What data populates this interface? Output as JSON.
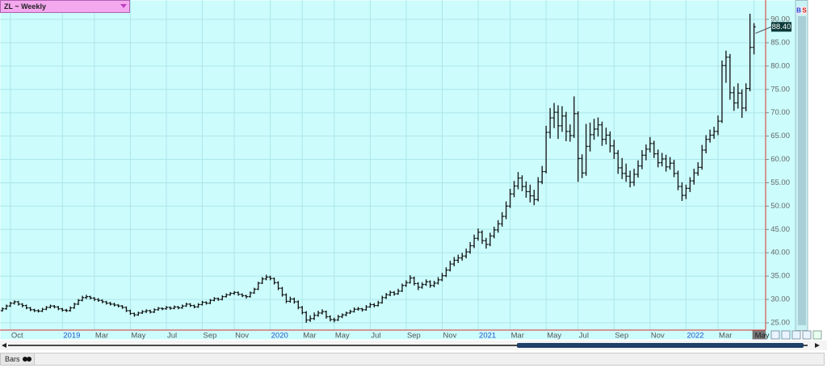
{
  "chart_data": {
    "type": "ohlc",
    "title": "ZL ~ Weekly",
    "title_color": "#f4a8ee",
    "background": "#ccfcfc",
    "grid_color": "#aee6ea",
    "bar_color": "#111111",
    "year_label_color": "#2255cc",
    "ylim": [
      25,
      90
    ],
    "yticks": [
      {
        "value": 25,
        "label": "25.00"
      },
      {
        "value": 30,
        "label": "30.00"
      },
      {
        "value": 35,
        "label": "35.00"
      },
      {
        "value": 40,
        "label": "40.00"
      },
      {
        "value": 45,
        "label": "45.00"
      },
      {
        "value": 50,
        "label": "50.00"
      },
      {
        "value": 55,
        "label": "55.00"
      },
      {
        "value": 60,
        "label": "60.00"
      },
      {
        "value": 65,
        "label": "65.00"
      },
      {
        "value": 70,
        "label": "70.00"
      },
      {
        "value": 75,
        "label": "75.00"
      },
      {
        "value": 80,
        "label": "80.00"
      },
      {
        "value": 85,
        "label": "85.00"
      },
      {
        "value": 90,
        "label": "90.00"
      }
    ],
    "grid": true,
    "last_price": {
      "value": 88.4,
      "label": "88.40"
    },
    "categories": [
      null,
      null,
      "Oct",
      null,
      null,
      null,
      null,
      null,
      null,
      null,
      null,
      null,
      null,
      null,
      null,
      "2019",
      null,
      null,
      null,
      null,
      null,
      null,
      null,
      "Mar",
      null,
      null,
      null,
      null,
      null,
      null,
      null,
      null,
      "May",
      null,
      null,
      null,
      null,
      null,
      null,
      null,
      null,
      "Jul",
      null,
      null,
      null,
      null,
      null,
      null,
      null,
      null,
      "Sep",
      null,
      null,
      null,
      null,
      null,
      null,
      null,
      "Nov",
      null,
      null,
      null,
      null,
      null,
      null,
      null,
      null,
      "2020",
      null,
      null,
      null,
      null,
      null,
      null,
      null,
      "Mar",
      null,
      null,
      null,
      null,
      null,
      null,
      null,
      "May",
      null,
      null,
      null,
      null,
      null,
      null,
      null,
      null,
      "Jul",
      null,
      null,
      null,
      null,
      null,
      null,
      null,
      null,
      "Sep",
      null,
      null,
      null,
      null,
      null,
      null,
      null,
      null,
      "Nov",
      null,
      null,
      null,
      null,
      null,
      null,
      null,
      null,
      "2021",
      null,
      null,
      null,
      null,
      null,
      null,
      null,
      "Mar",
      null,
      null,
      null,
      null,
      null,
      null,
      null,
      null,
      "May",
      null,
      null,
      null,
      null,
      null,
      null,
      null,
      "Jul",
      null,
      null,
      null,
      null,
      null,
      null,
      null,
      null,
      "Sep",
      null,
      null,
      null,
      null,
      null,
      null,
      null,
      null,
      "Nov",
      null,
      null,
      null,
      null,
      null,
      null,
      null,
      null,
      "2022",
      null,
      null,
      null,
      null,
      null,
      null,
      null,
      "Mar",
      null,
      null,
      null,
      null,
      null,
      null,
      null,
      null,
      "May"
    ],
    "values": [
      [
        27.6,
        28.3,
        27.4,
        28.0
      ],
      [
        28.0,
        28.9,
        27.8,
        28.6
      ],
      [
        28.6,
        29.5,
        28.4,
        29.2
      ],
      [
        29.2,
        29.8,
        28.9,
        29.5
      ],
      [
        29.5,
        29.7,
        28.7,
        29.0
      ],
      [
        29.0,
        29.2,
        28.3,
        28.7
      ],
      [
        28.7,
        28.9,
        27.9,
        28.2
      ],
      [
        28.2,
        28.4,
        27.5,
        27.8
      ],
      [
        27.8,
        28.0,
        27.3,
        27.6
      ],
      [
        27.6,
        27.9,
        27.2,
        27.5
      ],
      [
        27.5,
        28.2,
        27.3,
        27.9
      ],
      [
        27.9,
        28.6,
        27.7,
        28.3
      ],
      [
        28.3,
        28.9,
        28.1,
        28.6
      ],
      [
        28.6,
        28.8,
        28.1,
        28.4
      ],
      [
        28.4,
        28.6,
        27.7,
        28.0
      ],
      [
        28.0,
        28.2,
        27.4,
        27.7
      ],
      [
        27.7,
        28.0,
        27.3,
        27.6
      ],
      [
        27.6,
        28.5,
        27.4,
        28.2
      ],
      [
        28.2,
        29.3,
        28.0,
        29.0
      ],
      [
        29.0,
        30.1,
        28.8,
        29.8
      ],
      [
        29.8,
        30.8,
        29.6,
        30.4
      ],
      [
        30.4,
        31.0,
        30.1,
        30.6
      ],
      [
        30.6,
        30.8,
        30.0,
        30.3
      ],
      [
        30.3,
        30.5,
        29.7,
        30.0
      ],
      [
        30.0,
        30.3,
        29.5,
        29.8
      ],
      [
        29.8,
        30.0,
        29.2,
        29.5
      ],
      [
        29.5,
        29.7,
        28.9,
        29.2
      ],
      [
        29.2,
        29.5,
        28.7,
        29.0
      ],
      [
        29.0,
        29.3,
        28.5,
        28.8
      ],
      [
        28.8,
        29.0,
        28.3,
        28.6
      ],
      [
        28.6,
        28.8,
        28.0,
        28.3
      ],
      [
        28.3,
        28.5,
        27.3,
        27.6
      ],
      [
        27.6,
        27.8,
        26.7,
        27.0
      ],
      [
        27.0,
        27.2,
        26.3,
        26.7
      ],
      [
        26.7,
        27.4,
        26.5,
        27.1
      ],
      [
        27.1,
        27.7,
        26.9,
        27.4
      ],
      [
        27.4,
        27.9,
        27.1,
        27.6
      ],
      [
        27.6,
        27.8,
        27.0,
        27.3
      ],
      [
        27.3,
        28.1,
        27.1,
        27.8
      ],
      [
        27.8,
        28.4,
        27.6,
        28.1
      ],
      [
        28.1,
        28.3,
        27.7,
        28.0
      ],
      [
        28.0,
        28.6,
        27.8,
        28.3
      ],
      [
        28.3,
        28.5,
        27.8,
        28.1
      ],
      [
        28.1,
        28.7,
        27.9,
        28.4
      ],
      [
        28.4,
        28.6,
        27.9,
        28.2
      ],
      [
        28.2,
        28.9,
        28.0,
        28.6
      ],
      [
        28.6,
        29.3,
        28.4,
        29.0
      ],
      [
        29.0,
        29.2,
        28.4,
        28.7
      ],
      [
        28.7,
        28.9,
        28.1,
        28.4
      ],
      [
        28.4,
        29.2,
        28.2,
        28.9
      ],
      [
        28.9,
        29.7,
        28.7,
        29.4
      ],
      [
        29.4,
        29.6,
        28.9,
        29.2
      ],
      [
        29.2,
        30.1,
        29.0,
        29.8
      ],
      [
        29.8,
        30.5,
        29.6,
        30.2
      ],
      [
        30.2,
        30.4,
        29.7,
        30.0
      ],
      [
        30.0,
        30.9,
        29.8,
        30.6
      ],
      [
        30.6,
        31.3,
        30.4,
        31.0
      ],
      [
        31.0,
        31.6,
        30.8,
        31.3
      ],
      [
        31.3,
        31.8,
        31.0,
        31.5
      ],
      [
        31.5,
        31.7,
        30.8,
        31.1
      ],
      [
        31.1,
        31.3,
        30.5,
        30.8
      ],
      [
        30.8,
        31.0,
        30.2,
        30.6
      ],
      [
        30.6,
        31.7,
        30.4,
        31.4
      ],
      [
        31.4,
        32.5,
        31.2,
        32.2
      ],
      [
        32.2,
        33.8,
        32.0,
        33.5
      ],
      [
        33.5,
        34.8,
        33.3,
        34.4
      ],
      [
        34.4,
        35.3,
        34.1,
        34.8
      ],
      [
        34.8,
        35.1,
        34.1,
        34.5
      ],
      [
        34.5,
        34.7,
        33.2,
        33.6
      ],
      [
        33.6,
        33.9,
        32.0,
        32.4
      ],
      [
        32.4,
        32.7,
        30.6,
        31.0
      ],
      [
        31.0,
        31.3,
        29.2,
        29.6
      ],
      [
        29.6,
        30.6,
        29.3,
        30.1
      ],
      [
        30.1,
        30.4,
        29.1,
        29.5
      ],
      [
        29.5,
        29.8,
        27.9,
        28.3
      ],
      [
        28.3,
        28.6,
        26.8,
        27.2
      ],
      [
        27.2,
        27.5,
        25.0,
        25.6
      ],
      [
        25.6,
        26.6,
        25.2,
        25.9
      ],
      [
        25.9,
        27.2,
        25.6,
        26.6
      ],
      [
        26.6,
        27.6,
        26.3,
        27.1
      ],
      [
        27.1,
        27.9,
        26.8,
        27.4
      ],
      [
        27.4,
        27.6,
        25.9,
        26.3
      ],
      [
        26.3,
        26.6,
        25.3,
        25.7
      ],
      [
        25.7,
        26.1,
        25.1,
        25.6
      ],
      [
        25.6,
        26.7,
        25.4,
        26.3
      ],
      [
        26.3,
        27.0,
        26.0,
        26.7
      ],
      [
        26.7,
        27.4,
        26.4,
        27.1
      ],
      [
        27.1,
        27.8,
        26.9,
        27.4
      ],
      [
        27.4,
        28.3,
        27.2,
        27.9
      ],
      [
        27.9,
        28.4,
        27.6,
        28.0
      ],
      [
        28.0,
        28.2,
        27.4,
        27.8
      ],
      [
        27.8,
        28.8,
        27.6,
        28.4
      ],
      [
        28.4,
        29.3,
        28.2,
        28.9
      ],
      [
        28.9,
        29.2,
        28.3,
        28.7
      ],
      [
        28.7,
        29.7,
        28.5,
        29.3
      ],
      [
        29.3,
        30.8,
        29.1,
        30.4
      ],
      [
        30.4,
        31.4,
        30.1,
        31.0
      ],
      [
        31.0,
        31.9,
        30.7,
        31.5
      ],
      [
        31.5,
        31.8,
        30.8,
        31.2
      ],
      [
        31.2,
        32.3,
        31.0,
        31.8
      ],
      [
        31.8,
        33.4,
        31.6,
        33.0
      ],
      [
        33.0,
        34.1,
        32.7,
        33.6
      ],
      [
        33.6,
        35.2,
        33.4,
        34.6
      ],
      [
        34.6,
        34.9,
        33.0,
        33.4
      ],
      [
        33.4,
        33.7,
        32.0,
        32.6
      ],
      [
        32.6,
        33.7,
        32.3,
        33.2
      ],
      [
        33.2,
        34.3,
        32.9,
        33.8
      ],
      [
        33.8,
        34.1,
        32.5,
        33.0
      ],
      [
        33.0,
        34.0,
        32.6,
        33.5
      ],
      [
        33.5,
        34.8,
        33.2,
        34.2
      ],
      [
        34.2,
        35.7,
        33.9,
        35.1
      ],
      [
        35.1,
        36.9,
        34.8,
        36.3
      ],
      [
        36.3,
        38.3,
        36.0,
        37.6
      ],
      [
        37.6,
        39.1,
        37.1,
        38.4
      ],
      [
        38.4,
        39.6,
        37.8,
        38.9
      ],
      [
        38.9,
        40.0,
        38.3,
        39.3
      ],
      [
        39.3,
        40.9,
        38.8,
        40.2
      ],
      [
        40.2,
        42.3,
        39.8,
        41.5
      ],
      [
        41.5,
        43.9,
        41.0,
        43.1
      ],
      [
        43.1,
        45.2,
        42.6,
        44.4
      ],
      [
        44.4,
        44.8,
        41.9,
        42.6
      ],
      [
        42.6,
        43.2,
        40.9,
        41.8
      ],
      [
        41.8,
        44.3,
        41.4,
        43.6
      ],
      [
        43.6,
        45.6,
        43.1,
        44.9
      ],
      [
        44.9,
        47.0,
        44.3,
        46.2
      ],
      [
        46.2,
        48.7,
        45.6,
        47.8
      ],
      [
        47.8,
        51.0,
        47.2,
        50.0
      ],
      [
        50.0,
        53.7,
        49.6,
        52.6
      ],
      [
        52.6,
        55.4,
        51.9,
        54.3
      ],
      [
        54.3,
        57.3,
        53.6,
        56.0
      ],
      [
        56.0,
        56.6,
        53.2,
        54.2
      ],
      [
        54.2,
        55.3,
        51.8,
        53.1
      ],
      [
        53.1,
        54.6,
        50.8,
        52.2
      ],
      [
        52.2,
        53.5,
        50.2,
        51.4
      ],
      [
        51.4,
        56.2,
        51.0,
        55.2
      ],
      [
        55.2,
        58.6,
        54.7,
        57.4
      ],
      [
        57.4,
        67.2,
        57.0,
        65.8
      ],
      [
        65.8,
        71.0,
        64.5,
        68.9
      ],
      [
        68.9,
        72.1,
        66.7,
        70.1
      ],
      [
        70.1,
        71.6,
        64.4,
        67.2
      ],
      [
        67.2,
        71.4,
        65.9,
        69.3
      ],
      [
        69.3,
        70.2,
        63.9,
        66.0
      ],
      [
        66.0,
        67.5,
        63.8,
        65.1
      ],
      [
        65.1,
        73.5,
        64.6,
        69.8
      ],
      [
        69.8,
        70.3,
        55.2,
        60.2
      ],
      [
        60.2,
        61.1,
        56.0,
        57.1
      ],
      [
        57.1,
        67.6,
        56.5,
        62.8
      ],
      [
        62.8,
        67.9,
        61.7,
        65.3
      ],
      [
        65.3,
        68.7,
        64.2,
        66.5
      ],
      [
        66.5,
        69.0,
        64.9,
        67.4
      ],
      [
        67.4,
        68.1,
        62.9,
        64.3
      ],
      [
        64.3,
        66.8,
        63.2,
        65.2
      ],
      [
        65.2,
        66.0,
        61.5,
        62.9
      ],
      [
        62.9,
        64.2,
        60.1,
        61.3
      ],
      [
        61.3,
        62.0,
        56.9,
        58.2
      ],
      [
        58.2,
        60.3,
        55.8,
        57.0
      ],
      [
        57.0,
        59.1,
        55.2,
        56.4
      ],
      [
        56.4,
        57.6,
        54.0,
        55.1
      ],
      [
        55.1,
        58.0,
        54.3,
        56.8
      ],
      [
        56.8,
        59.8,
        56.1,
        58.6
      ],
      [
        58.6,
        62.0,
        57.9,
        60.9
      ],
      [
        60.9,
        63.2,
        59.8,
        62.2
      ],
      [
        62.2,
        64.8,
        61.5,
        63.4
      ],
      [
        63.4,
        64.0,
        60.3,
        61.2
      ],
      [
        61.2,
        62.1,
        58.3,
        59.3
      ],
      [
        59.3,
        61.4,
        58.5,
        60.1
      ],
      [
        60.1,
        61.0,
        57.4,
        58.4
      ],
      [
        58.4,
        60.5,
        57.8,
        59.2
      ],
      [
        59.2,
        59.9,
        56.2,
        57.0
      ],
      [
        57.0,
        57.6,
        53.4,
        54.2
      ],
      [
        54.2,
        55.1,
        51.1,
        52.3
      ],
      [
        52.3,
        54.6,
        51.5,
        53.8
      ],
      [
        53.8,
        56.2,
        53.0,
        55.4
      ],
      [
        55.4,
        58.0,
        54.6,
        57.1
      ],
      [
        57.1,
        59.4,
        56.5,
        58.3
      ],
      [
        58.3,
        63.1,
        57.8,
        62.0
      ],
      [
        62.0,
        65.2,
        61.3,
        64.3
      ],
      [
        64.3,
        66.4,
        63.6,
        65.2
      ],
      [
        65.2,
        67.0,
        64.4,
        66.0
      ],
      [
        66.0,
        69.4,
        65.2,
        68.2
      ],
      [
        68.2,
        81.2,
        67.8,
        80.1
      ],
      [
        80.1,
        83.3,
        76.4,
        81.9
      ],
      [
        81.9,
        82.6,
        72.8,
        74.3
      ],
      [
        74.3,
        75.6,
        70.4,
        72.1
      ],
      [
        72.1,
        76.3,
        70.9,
        74.2
      ],
      [
        74.2,
        75.0,
        68.9,
        71.0
      ],
      [
        71.0,
        76.3,
        70.3,
        75.2
      ],
      [
        75.2,
        91.2,
        74.6,
        84.0
      ],
      [
        84.0,
        89.2,
        82.5,
        88.4
      ]
    ]
  },
  "buttons": [
    "B",
    "S"
  ],
  "toolbar": {
    "chart_style": "Bars"
  }
}
